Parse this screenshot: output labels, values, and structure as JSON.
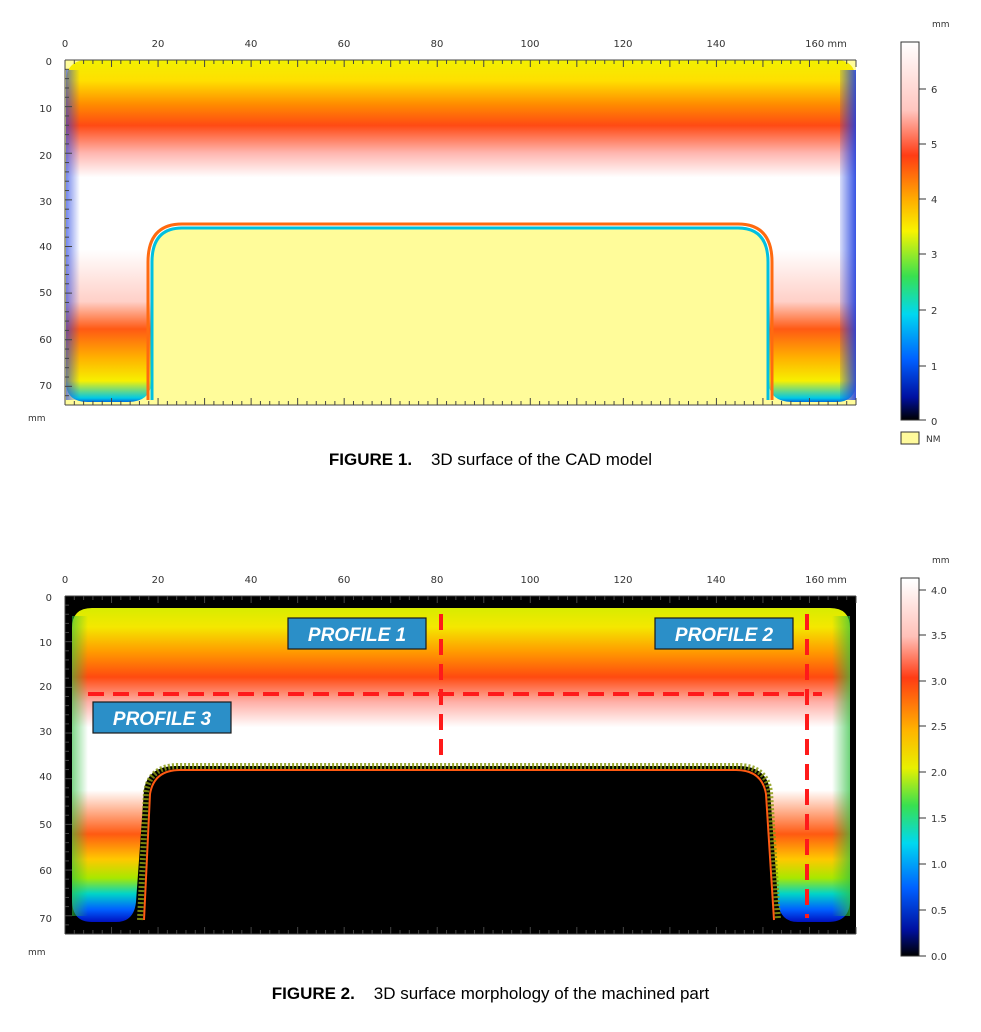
{
  "figure1": {
    "caption_label": "FIGURE 1.",
    "caption_text": "3D surface of the CAD model",
    "x_ticks": [
      "0",
      "20",
      "40",
      "60",
      "80",
      "100",
      "120",
      "140",
      "160 mm"
    ],
    "y_ticks": [
      "0",
      "10",
      "20",
      "30",
      "40",
      "50",
      "60",
      "70"
    ],
    "y_unit": "mm",
    "scale_unit": "mm",
    "scale_ticks": [
      "6",
      "5",
      "4",
      "3",
      "2",
      "1",
      "0"
    ],
    "nm_label": "NM",
    "scale_range_mm": [
      0,
      6.6
    ],
    "colors": {
      "background": "#fffc9a",
      "nm": "#fffa9c"
    }
  },
  "figure2": {
    "caption_label": "FIGURE 2.",
    "caption_text": "3D surface morphology of the machined part",
    "x_ticks": [
      "0",
      "20",
      "40",
      "60",
      "80",
      "100",
      "120",
      "140",
      "160 mm"
    ],
    "y_ticks": [
      "0",
      "10",
      "20",
      "30",
      "40",
      "50",
      "60",
      "70"
    ],
    "y_unit": "mm",
    "scale_unit": "mm",
    "scale_ticks": [
      "4.0",
      "3.5",
      "3.0",
      "2.5",
      "2.0",
      "1.5",
      "1.0",
      "0.5",
      "0.0"
    ],
    "scale_range_mm": [
      0,
      4.1
    ],
    "profiles": {
      "p1": "PROFILE 1",
      "p2": "PROFILE 2",
      "p3": "PROFILE 3"
    },
    "colors": {
      "background": "#000000",
      "profile_box": "#2b8fc8",
      "dash": "#ff1a1a"
    }
  }
}
